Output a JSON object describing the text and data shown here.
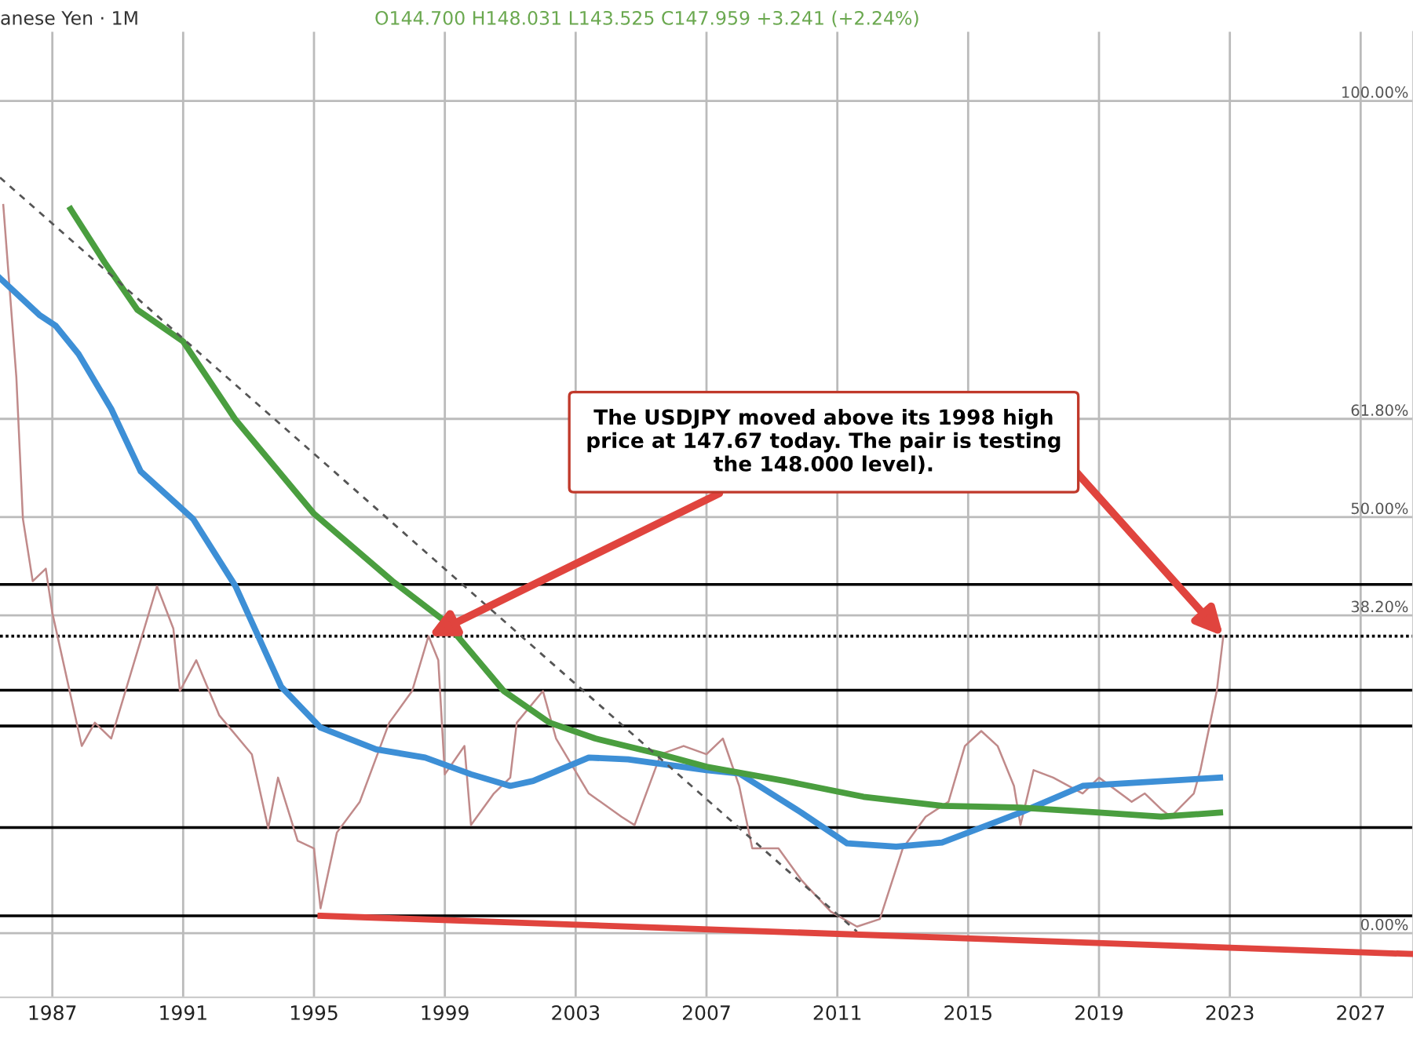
{
  "chart_data": {
    "type": "line",
    "annotations": [
      "anese Yen · 1M",
      "O144.700 H148.031 L143.525 C147.959 +3.241 (+2.24%)",
      {
        "text": "The USDJPY moved above its 1998 high\nprice at 147.67 today. The pair is testing\nthe 148.000 level).",
        "x": 1998.5,
        "y": 35.7
      }
    ],
    "xlim": [
      1985.4,
      2028.6
    ],
    "xticks": [
      1987,
      1991,
      1995,
      1999,
      2003,
      2007,
      2011,
      2015,
      2019,
      2023,
      2027
    ],
    "ylim": [
      -7.7,
      108.3
    ],
    "yticks": [
      {
        "value": 100,
        "label": "100.00%"
      },
      {
        "value": 61.8,
        "label": "61.80%"
      },
      {
        "value": 50,
        "label": "50.00%"
      },
      {
        "value": 38.2,
        "label": "38.20%"
      },
      {
        "value": 0,
        "label": "0.00%"
      }
    ],
    "grid": true,
    "series": [
      {
        "color": "#c08a8a",
        "x": [
          1985.5,
          1985.9,
          1986.1,
          1986.4,
          1986.8,
          1987.0,
          1987.9,
          1988.3,
          1988.8,
          1990.2,
          1990.7,
          1990.9,
          1991.4,
          1992.1,
          1993.1,
          1993.6,
          1993.9,
          1994.5,
          1995.0,
          1995.2,
          1995.7,
          1996.4,
          1997.3,
          1998.0,
          1998.5,
          1998.8,
          1999.0,
          1999.6,
          1999.8,
          2000.5,
          2001.0,
          2001.2,
          2002.0,
          2002.4,
          2003.4,
          2004.4,
          2004.8,
          2005.6,
          2006.3,
          2007.0,
          2007.5,
          2008.0,
          2008.4,
          2009.2,
          2009.9,
          2010.8,
          2011.6,
          2012.3,
          2013.0,
          2013.7,
          2014.4,
          2014.9,
          2015.4,
          2015.9,
          2016.4,
          2016.6,
          2017.0,
          2017.6,
          2018.5,
          2019.0,
          2020.0,
          2020.4,
          2020.9,
          2021.2,
          2021.9,
          2022.1,
          2022.4,
          2022.6,
          2022.8
        ],
        "values": [
          87.5,
          66.8,
          49.8,
          42.3,
          43.8,
          38.5,
          22.5,
          25.3,
          23.4,
          41.7,
          36.6,
          29.1,
          32.8,
          26.2,
          21.5,
          12.6,
          18.7,
          11.1,
          10.2,
          3.0,
          12.1,
          15.8,
          25.3,
          29.1,
          35.7,
          32.8,
          19.1,
          22.5,
          13.0,
          16.8,
          18.7,
          25.3,
          29.1,
          23.4,
          16.8,
          14.0,
          13.0,
          21.5,
          22.5,
          21.5,
          23.4,
          17.7,
          10.2,
          10.2,
          6.4,
          2.6,
          0.8,
          1.7,
          10.2,
          14.0,
          15.8,
          22.5,
          24.3,
          22.5,
          17.7,
          13.0,
          19.6,
          18.7,
          16.8,
          18.7,
          15.8,
          16.8,
          14.9,
          14.0,
          16.8,
          19.6,
          25.3,
          29.1,
          35.7
        ]
      },
      {
        "color": "#3d8fd6",
        "x": [
          1985.4,
          1986.6,
          1987.1,
          1987.8,
          1988.8,
          1989.7,
          1991.3,
          1992.6,
          1994.0,
          1995.2,
          1996.9,
          1998.4,
          1999.8,
          2001.0,
          2001.7,
          2003.4,
          2004.6,
          2007.0,
          2008.0,
          2009.9,
          2011.3,
          2012.8,
          2014.2,
          2016.6,
          2018.5,
          2022.7
        ],
        "values": [
          78.7,
          74.3,
          73.0,
          69.6,
          63.0,
          55.5,
          49.8,
          41.7,
          29.6,
          24.7,
          22.1,
          21.1,
          19.1,
          17.7,
          18.3,
          21.1,
          20.9,
          19.6,
          19.2,
          14.5,
          10.8,
          10.4,
          10.9,
          14.5,
          17.7,
          18.7
        ]
      },
      {
        "color": "#4a9e3f",
        "x": [
          1987.56,
          1988.6,
          1989.6,
          1991.0,
          1992.6,
          1995.0,
          1997.4,
          1999.0,
          2000.8,
          2002.2,
          2003.6,
          2005.6,
          2007.0,
          2009.4,
          2011.8,
          2014.2,
          2016.6,
          2019.0,
          2020.9,
          2022.7
        ],
        "values": [
          87.0,
          80.6,
          74.9,
          71.1,
          61.7,
          50.4,
          42.3,
          37.5,
          29.1,
          25.3,
          23.4,
          21.5,
          20.0,
          18.3,
          16.4,
          15.3,
          15.1,
          14.5,
          14.0,
          14.5
        ]
      },
      {
        "color": "#555555",
        "line_style": "dashed",
        "x": [
          1985.4,
          2011.6
        ],
        "values": [
          90.8,
          0.2
        ]
      },
      {
        "color": "#e0443e",
        "x": [
          1995.2,
          2028.6
        ],
        "values": [
          2.1,
          -2.5
        ]
      }
    ],
    "ref_lines": [
      {
        "axis": "y",
        "value": 41.9,
        "color": "#000000"
      },
      {
        "axis": "y",
        "value": 35.7,
        "color": "#000000",
        "line_style": "dotted"
      },
      {
        "axis": "y",
        "value": 29.2,
        "color": "#000000"
      },
      {
        "axis": "y",
        "value": 24.9,
        "color": "#000000"
      },
      {
        "axis": "y",
        "value": 12.7,
        "color": "#000000"
      },
      {
        "axis": "y",
        "value": 2.1,
        "color": "#000000"
      }
    ]
  }
}
